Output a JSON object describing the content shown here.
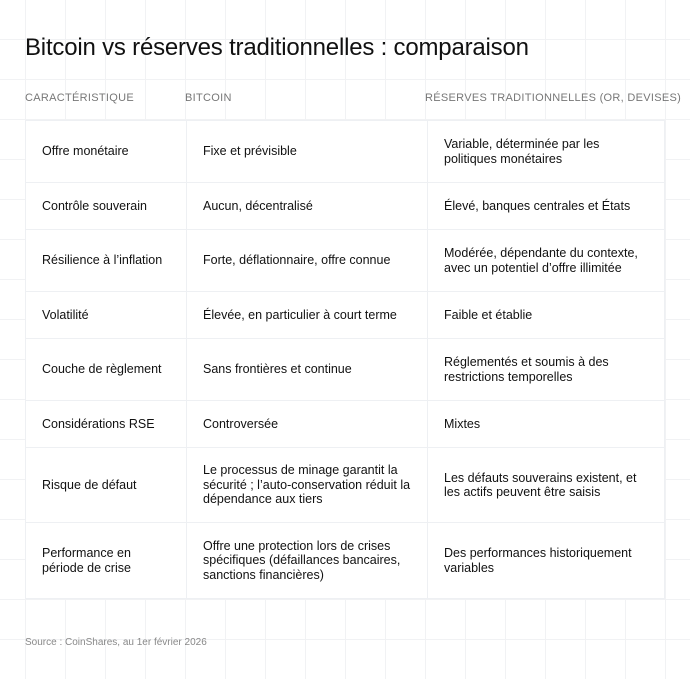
{
  "title": "Bitcoin vs réserves traditionnelles : comparaison",
  "columns": [
    "CARACTÉRISTIQUE",
    "BITCOIN",
    "RÉSERVES TRADITIONNELLES (OR, DEVISES)"
  ],
  "rows": [
    [
      "Offre monétaire",
      "Fixe et prévisible",
      "Variable, déterminée par les politiques monétaires"
    ],
    [
      "Contrôle souverain",
      "Aucun, décentralisé",
      "Élevé, banques centrales et États"
    ],
    [
      "Résilience à l’inflation",
      "Forte, déflationnaire, offre connue",
      "Modérée, dépendante du contexte, avec un potentiel d’offre illimitée"
    ],
    [
      "Volatilité",
      "Élevée, en particulier à court terme",
      "Faible et établie"
    ],
    [
      "Couche de règlement",
      "Sans frontières et continue",
      "Réglementés et soumis à des restrictions temporelles"
    ],
    [
      "Considérations RSE",
      "Controversée",
      "Mixtes"
    ],
    [
      "Risque de défaut",
      "Le processus de minage garantit la sécurité ; l’auto-conservation réduit la dépendance aux tiers",
      "Les défauts souverains existent, et les actifs peuvent être saisis"
    ],
    [
      "Performance en période de crise",
      "Offre une protection lors de crises spécifiques (défaillances bancaires, sanctions financières)",
      "Des performances historiquement variables"
    ]
  ],
  "source": "Source : CoinShares, au 1er février 2026"
}
